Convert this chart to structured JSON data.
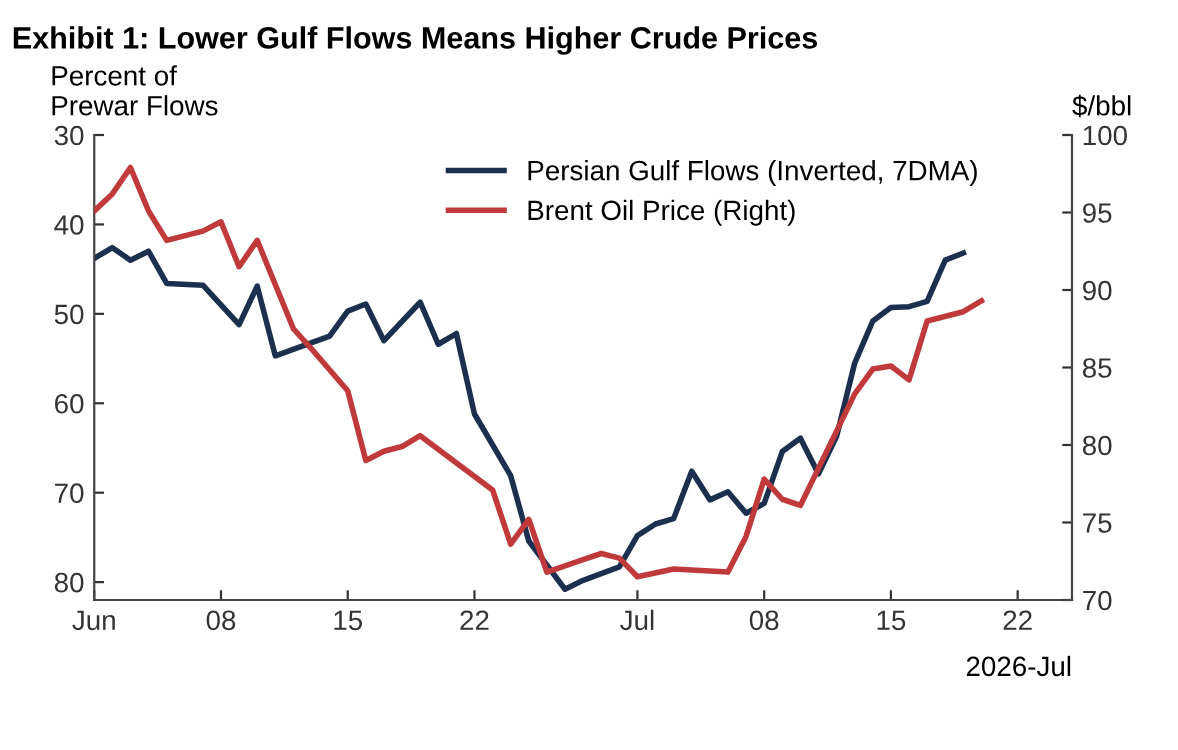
{
  "chart_data": {
    "type": "line",
    "title": "Exhibit 1: Lower Gulf Flows Means Higher Crude Prices",
    "ylabel": "Percent of\nPrewar Flows",
    "y2label": "$/bbl",
    "xlabel": "2026-Jul",
    "xlim": [
      "2026-06-01",
      "2026-07-25"
    ],
    "xticks": [
      {
        "value": "2026-06-01",
        "label": "Jun"
      },
      {
        "value": "2026-06-08",
        "label": "08"
      },
      {
        "value": "2026-06-15",
        "label": "15"
      },
      {
        "value": "2026-06-22",
        "label": "22"
      },
      {
        "value": "2026-07-01",
        "label": "Jul"
      },
      {
        "value": "2026-07-08",
        "label": "08"
      },
      {
        "value": "2026-07-15",
        "label": "15"
      },
      {
        "value": "2026-07-22",
        "label": "22"
      }
    ],
    "ylim": [
      82,
      30
    ],
    "yticks": [
      30,
      40,
      50,
      60,
      70,
      80
    ],
    "y2lim": [
      70,
      100
    ],
    "y2ticks": [
      70,
      75,
      80,
      85,
      90,
      95,
      100
    ],
    "grid": false,
    "legend": "top right",
    "line_style": "solid",
    "marker": "none",
    "series": [
      {
        "name": "Persian Gulf Flows (Inverted, 7DMA)",
        "color": "#1c2f4f",
        "axis": "y",
        "x": [
          "2026-06-01",
          "2026-06-02",
          "2026-06-03",
          "2026-06-04",
          "2026-06-05",
          "2026-06-07",
          "2026-06-09",
          "2026-06-10",
          "2026-06-11",
          "2026-06-14",
          "2026-06-15",
          "2026-06-16",
          "2026-06-17",
          "2026-06-19",
          "2026-06-20",
          "2026-06-21",
          "2026-06-22",
          "2026-06-24",
          "2026-06-25",
          "2026-06-27",
          "2026-06-28",
          "2026-06-30",
          "2026-07-01",
          "2026-07-02",
          "2026-07-03",
          "2026-07-04",
          "2026-07-05",
          "2026-07-06",
          "2026-07-07",
          "2026-07-08",
          "2026-07-09",
          "2026-07-10",
          "2026-07-11",
          "2026-07-12",
          "2026-07-13",
          "2026-07-14",
          "2026-07-15",
          "2026-07-16",
          "2026-07-17",
          "2026-07-18",
          "2026-07-19"
        ],
        "values": [
          43.8,
          42.6,
          44.0,
          43.0,
          46.6,
          46.8,
          51.2,
          46.9,
          54.7,
          52.5,
          49.7,
          48.9,
          53.0,
          48.7,
          53.4,
          52.2,
          61.2,
          68.1,
          75.4,
          80.8,
          79.8,
          78.3,
          74.8,
          73.5,
          72.9,
          67.6,
          70.8,
          69.9,
          72.3,
          71.2,
          65.4,
          63.9,
          67.9,
          63.7,
          55.5,
          50.8,
          49.3,
          49.2,
          48.6,
          44.0,
          43.2
        ]
      },
      {
        "name": "Brent Oil Price (Right)",
        "color": "#c0393b",
        "axis": "y2",
        "x": [
          "2026-06-01",
          "2026-06-02",
          "2026-06-03",
          "2026-06-04",
          "2026-06-05",
          "2026-06-07",
          "2026-06-08",
          "2026-06-09",
          "2026-06-10",
          "2026-06-12",
          "2026-06-13",
          "2026-06-15",
          "2026-06-16",
          "2026-06-17",
          "2026-06-18",
          "2026-06-19",
          "2026-06-23",
          "2026-06-24",
          "2026-06-25",
          "2026-06-26",
          "2026-06-28",
          "2026-06-29",
          "2026-06-30",
          "2026-07-01",
          "2026-07-03",
          "2026-07-06",
          "2026-07-07",
          "2026-07-08",
          "2026-07-09",
          "2026-07-10",
          "2026-07-13",
          "2026-07-14",
          "2026-07-15",
          "2026-07-16",
          "2026-07-17",
          "2026-07-19",
          "2026-07-20"
        ],
        "values": [
          95.1,
          96.2,
          97.9,
          95.1,
          93.2,
          93.8,
          94.4,
          91.5,
          93.2,
          87.5,
          86.2,
          83.5,
          79.0,
          79.6,
          79.9,
          80.6,
          77.1,
          73.6,
          75.2,
          71.8,
          72.6,
          73.0,
          72.7,
          71.5,
          72.0,
          71.8,
          74.1,
          77.8,
          76.5,
          76.1,
          83.3,
          84.9,
          85.1,
          84.2,
          88.0,
          88.6,
          89.3
        ]
      }
    ]
  }
}
